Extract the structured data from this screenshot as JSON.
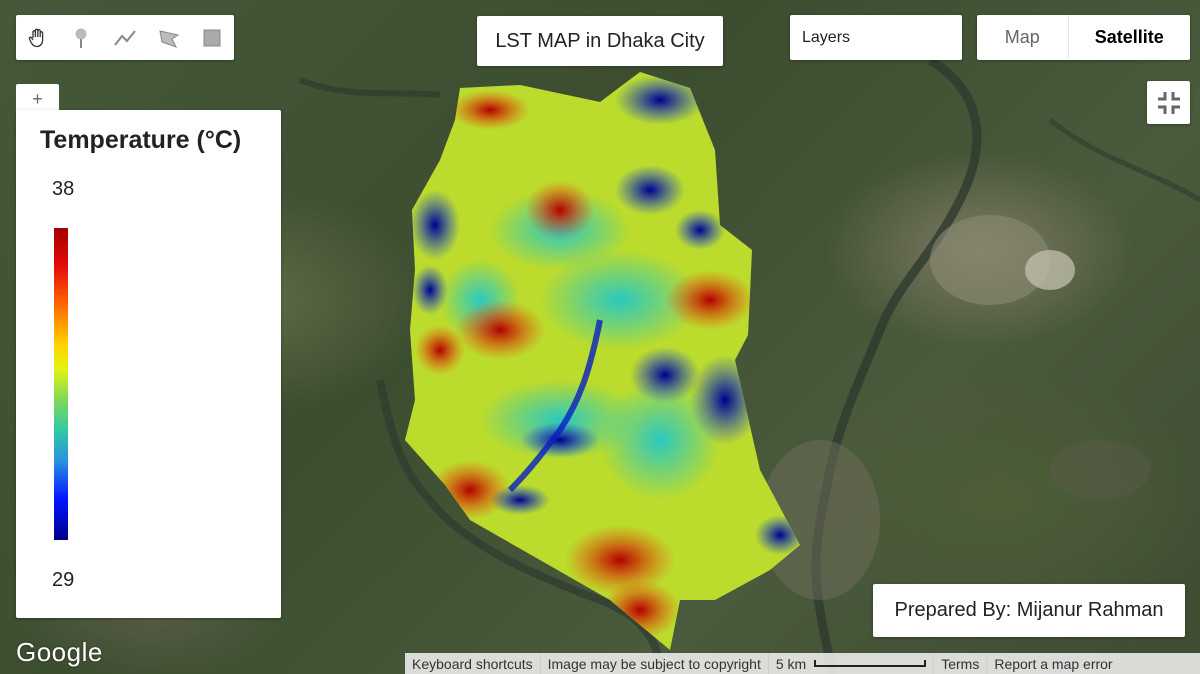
{
  "map": {
    "basemap": "satellite",
    "overlay_region": "Dhaka City",
    "overlay_palette": [
      "#00008b",
      "#0014ff",
      "#2a8fe0",
      "#2fc9a5",
      "#7ed957",
      "#e7f20f",
      "#ffd000",
      "#ff6a00",
      "#e30b0b",
      "#a50000"
    ]
  },
  "toolbar": {
    "tools": [
      {
        "name": "pan",
        "icon": "hand-icon"
      },
      {
        "name": "point",
        "icon": "marker-icon"
      },
      {
        "name": "line",
        "icon": "line-icon"
      },
      {
        "name": "polygon",
        "icon": "polygon-icon"
      },
      {
        "name": "rectangle",
        "icon": "rectangle-icon"
      }
    ]
  },
  "title_panel": {
    "text": "LST MAP in Dhaka City"
  },
  "layers_button": {
    "label": "Layers"
  },
  "map_type": {
    "map_label": "Map",
    "satellite_label": "Satellite",
    "selected": "Satellite"
  },
  "zoom": {
    "plus_label": "+"
  },
  "legend": {
    "title": "Temperature (°C)",
    "max": "38",
    "min": "29"
  },
  "credit_panel": {
    "text": "Prepared By: Mijanur Rahman"
  },
  "google_logo": {
    "text": "Google"
  },
  "footer": {
    "keyboard": "Keyboard shortcuts",
    "copyright": "Image may be subject to copyright",
    "scale": "5 km",
    "terms": "Terms",
    "report": "Report a map error"
  }
}
